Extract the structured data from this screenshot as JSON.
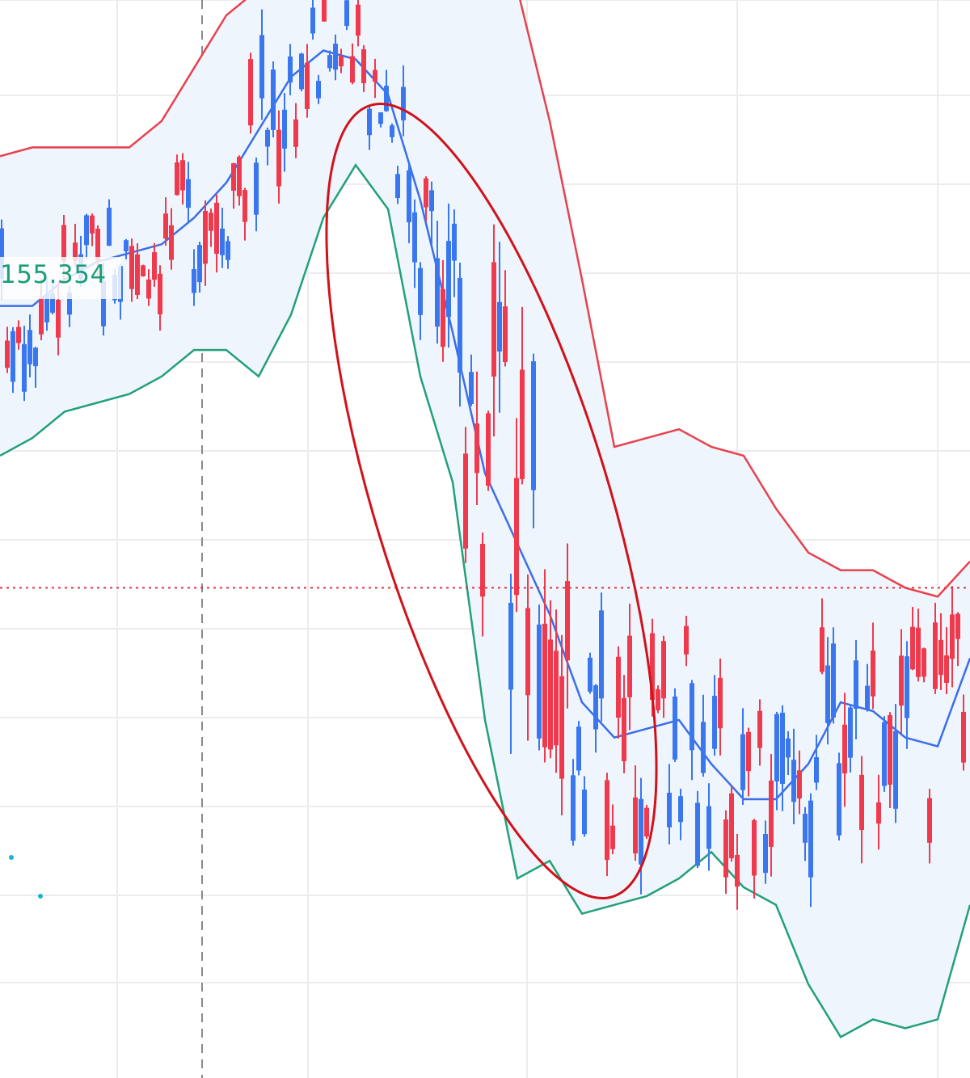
{
  "colors": {
    "up": "#ef3a4e",
    "down": "#3a77ee",
    "upper_band": "#e8414d",
    "middle_band": "#3b6fe8",
    "lower_band": "#23a07a",
    "band_fill": "#eef5fc",
    "grid": "#ececf0",
    "price_line": "#e0323e",
    "ellipse": "#d0121b",
    "label_text": "#1a9e78",
    "dots": "#18b5c8"
  },
  "price_label": {
    "value": "155.354"
  },
  "chart_data": {
    "type": "candlestick",
    "indicator": "bollinger_bands",
    "bands": {
      "upper": [
        156.7,
        156.8,
        156.8,
        156.8,
        156.8,
        157.1,
        157.7,
        158.3,
        158.6,
        158.6,
        158.8,
        158.9,
        158.8,
        159.4,
        159.3,
        159.5,
        158.6,
        157.1,
        155.3,
        153.4,
        153.5,
        153.6,
        153.4,
        153.3,
        152.7,
        152.2,
        152.0,
        152.0,
        151.8,
        151.7,
        152.1
      ],
      "middle": [
        155.0,
        155.0,
        155.3,
        155.5,
        155.6,
        155.7,
        156.0,
        156.4,
        157.0,
        157.6,
        157.9,
        157.8,
        157.4,
        156.2,
        154.7,
        153.1,
        152.3,
        151.5,
        150.5,
        150.1,
        150.2,
        150.3,
        149.8,
        149.4,
        149.4,
        149.8,
        150.5,
        150.4,
        150.1,
        150.0,
        151.0
      ],
      "lower": [
        153.3,
        153.5,
        153.8,
        153.9,
        154.0,
        154.2,
        154.5,
        154.5,
        154.2,
        154.9,
        156.0,
        156.6,
        156.1,
        154.2,
        153.0,
        150.3,
        148.5,
        148.7,
        148.1,
        148.2,
        148.3,
        148.5,
        148.8,
        148.4,
        148.2,
        147.3,
        146.7,
        146.9,
        146.8,
        146.9,
        148.2
      ]
    },
    "price_line": 151.8,
    "grid": true,
    "annotation": "ellipse"
  }
}
